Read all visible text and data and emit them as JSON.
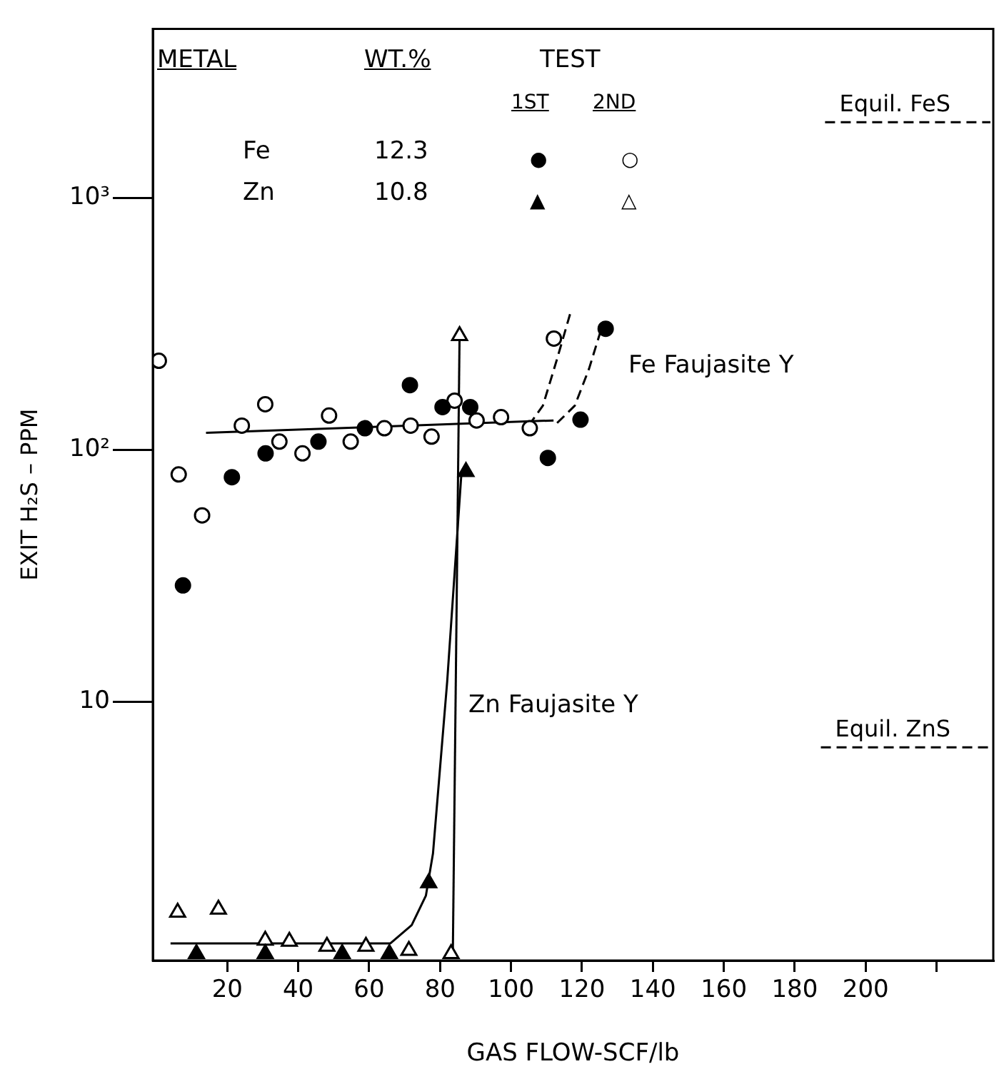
{
  "chart_data": {
    "type": "scatter",
    "xlabel": "GAS FLOW-SCF/lb",
    "ylabel": "EXIT H₂S – PPM",
    "log": "y",
    "grid": false,
    "legend": false,
    "xlim": [
      -1,
      236
    ],
    "xticks": [
      20,
      40,
      60,
      80,
      100,
      120,
      140,
      160,
      180,
      200,
      {
        "value": 220,
        "label": null
      }
    ],
    "ylim": [
      0.94,
      4700
    ],
    "yticks": [
      10,
      {
        "value": 100,
        "label": "10²"
      },
      {
        "value": 1000,
        "label": "10³"
      }
    ],
    "annotations": [
      "METAL",
      "WT.%",
      "TEST",
      "1ST",
      "2ND",
      "Fe",
      "12.3",
      "Zn",
      "10.8",
      "Fe Faujasite Y",
      "Zn Faujasite Y",
      "●",
      "○",
      "▲",
      "△"
    ],
    "ref_lines": [
      {
        "axis": "y",
        "value": 2000,
        "label": "Equil. FeS",
        "line_style": "dashed"
      },
      {
        "axis": "y",
        "value": 6.6,
        "label": "Equil. ZnS",
        "line_style": "dashed"
      }
    ],
    "series": [
      {
        "marker": "circle",
        "color": "#000000",
        "x": [
          7.5,
          21.3,
          30.8,
          45.7,
          58.8,
          71.5,
          80.7,
          88.5,
          110.4,
          119.6,
          126.7
        ],
        "values": [
          29,
          78,
          97,
          108,
          122,
          181,
          148,
          148,
          93,
          132,
          303
        ]
      },
      {
        "marker": "circle",
        "color": "#ffffff",
        "x": [
          0.7,
          6.3,
          12.9,
          24.1,
          30.7,
          34.7,
          41.2,
          48.7,
          54.8,
          64.3,
          71.7,
          77.6,
          84.1,
          90.3,
          97.2,
          105.3,
          112.1
        ],
        "values": [
          226,
          80,
          55,
          125,
          152,
          108,
          97,
          137,
          108,
          122,
          125,
          113,
          157,
          131,
          135,
          122,
          277
        ]
      },
      {
        "marker": "triangle",
        "color": "#000000",
        "x": [
          11.3,
          30.7,
          52.4,
          65.7,
          76.8,
          87.3
        ],
        "values": [
          1.0,
          1.0,
          1.0,
          1.0,
          1.91,
          82
        ]
      },
      {
        "marker": "triangle",
        "color": "#ffffff",
        "x": [
          6,
          17.5,
          30.7,
          37.5,
          48.1,
          59.1,
          71.2,
          83.1,
          85.5
        ],
        "values": [
          1.46,
          1.5,
          1.13,
          1.12,
          1.07,
          1.07,
          1.03,
          1.0,
          284
        ]
      },
      {
        "type": "line",
        "marker": "none",
        "line_style": "solid",
        "color": "#000000",
        "x": [
          14,
          112
        ],
        "values": [
          117,
          131
        ]
      },
      {
        "type": "line",
        "marker": "none",
        "line_style": "dashed",
        "color": "#000000",
        "x": [
          105,
          109,
          113,
          117
        ],
        "values": [
          125,
          150,
          230,
          360
        ]
      },
      {
        "type": "line",
        "marker": "none",
        "line_style": "dashed",
        "color": "#000000",
        "x": [
          113,
          118,
          122,
          126
        ],
        "values": [
          128,
          150,
          210,
          320
        ]
      },
      {
        "type": "line",
        "marker": "none",
        "line_style": "solid",
        "color": "#000000",
        "x": [
          4,
          66,
          72,
          76,
          78,
          82,
          86
        ],
        "values": [
          1.1,
          1.1,
          1.3,
          1.7,
          2.5,
          12,
          80
        ]
      },
      {
        "type": "line",
        "marker": "none",
        "line_style": "solid",
        "color": "#000000",
        "x": [
          83.6,
          85.5
        ],
        "values": [
          1.0,
          284
        ]
      }
    ]
  }
}
